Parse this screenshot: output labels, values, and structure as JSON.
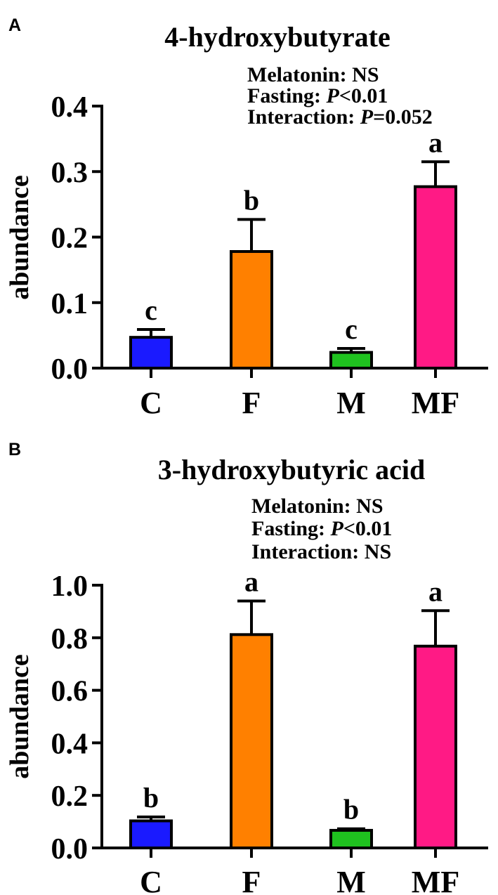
{
  "chart_data": [
    {
      "type": "bar",
      "panel": "A",
      "title": "4-hydroxybutyrate",
      "ylabel": "abundance",
      "xlabel": "",
      "ylim": [
        0,
        0.4
      ],
      "yticks": [
        "0.0",
        "0.1",
        "0.2",
        "0.3",
        "0.4"
      ],
      "yticks_values": [
        0,
        0.1,
        0.2,
        0.3,
        0.4
      ],
      "categories": [
        "C",
        "F",
        "M",
        "MF"
      ],
      "values": [
        0.047,
        0.178,
        0.024,
        0.277
      ],
      "errors": [
        0.012,
        0.049,
        0.006,
        0.038
      ],
      "colors": [
        "#1a1aff",
        "#ff8000",
        "#1fc21f",
        "#ff1a85"
      ],
      "letters": [
        "c",
        "b",
        "c",
        "a"
      ],
      "stats": [
        {
          "label": "Melatonin: ",
          "italic": "",
          "value": "NS"
        },
        {
          "label": "Fasting: ",
          "italic": "P",
          "value": "<0.01"
        },
        {
          "label": "Interaction: ",
          "italic": "P",
          "value": "=0.052"
        }
      ]
    },
    {
      "type": "bar",
      "panel": "B",
      "title": "3-hydroxybutyric acid",
      "ylabel": "abundance",
      "xlabel": "",
      "ylim": [
        0,
        1.0
      ],
      "yticks": [
        "0.0",
        "0.2",
        "0.4",
        "0.6",
        "0.8",
        "1.0"
      ],
      "yticks_values": [
        0,
        0.2,
        0.4,
        0.6,
        0.8,
        1.0
      ],
      "categories": [
        "C",
        "F",
        "M",
        "MF"
      ],
      "values": [
        0.103,
        0.812,
        0.067,
        0.768
      ],
      "errors": [
        0.015,
        0.128,
        0.006,
        0.135
      ],
      "colors": [
        "#1a1aff",
        "#ff8000",
        "#1fc21f",
        "#ff1a85"
      ],
      "letters": [
        "b",
        "a",
        "b",
        "a"
      ],
      "stats": [
        {
          "label": "Melatonin: ",
          "italic": "",
          "value": "NS"
        },
        {
          "label": "Fasting: ",
          "italic": "P",
          "value": "<0.01"
        },
        {
          "label": "Interaction: ",
          "italic": "",
          "value": "NS"
        }
      ]
    }
  ]
}
